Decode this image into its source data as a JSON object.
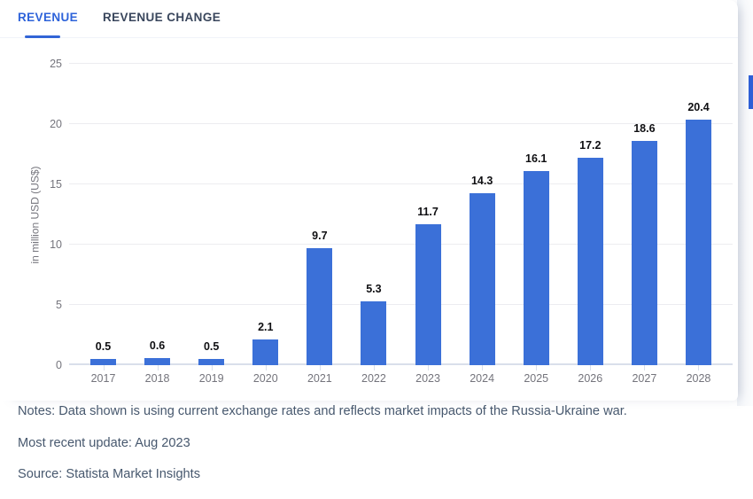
{
  "tabs": [
    {
      "label": "REVENUE",
      "active": true
    },
    {
      "label": "REVENUE CHANGE",
      "active": false
    }
  ],
  "chart_data": {
    "type": "bar",
    "categories": [
      "2017",
      "2018",
      "2019",
      "2020",
      "2021",
      "2022",
      "2023",
      "2024",
      "2025",
      "2026",
      "2027",
      "2028"
    ],
    "values": [
      0.5,
      0.6,
      0.5,
      2.1,
      9.7,
      5.3,
      11.7,
      14.3,
      16.1,
      17.2,
      18.6,
      20.4
    ],
    "title": "",
    "xlabel": "",
    "ylabel": "in million USD (US$)",
    "yticks": [
      0,
      5,
      10,
      15,
      20,
      25
    ],
    "ylim": [
      0,
      25
    ],
    "grid": true,
    "value_labels": true,
    "legend": "none"
  },
  "notes": {
    "notes_line": "Notes: Data shown is using current exchange rates and reflects market impacts of the Russia-Ukraine war.",
    "update_line": "Most recent update: Aug 2023",
    "source_line": "Source: Statista Market Insights"
  },
  "colors": {
    "bar": "#3b70d8",
    "accent_tab": "#2e63da",
    "inactive_tab": "#39465c",
    "axis_text": "#74747c",
    "gridline": "#ececf0",
    "baseline": "#d9dfeb",
    "notes_text": "#47586e",
    "scrollbar": "#2e5fd6"
  }
}
